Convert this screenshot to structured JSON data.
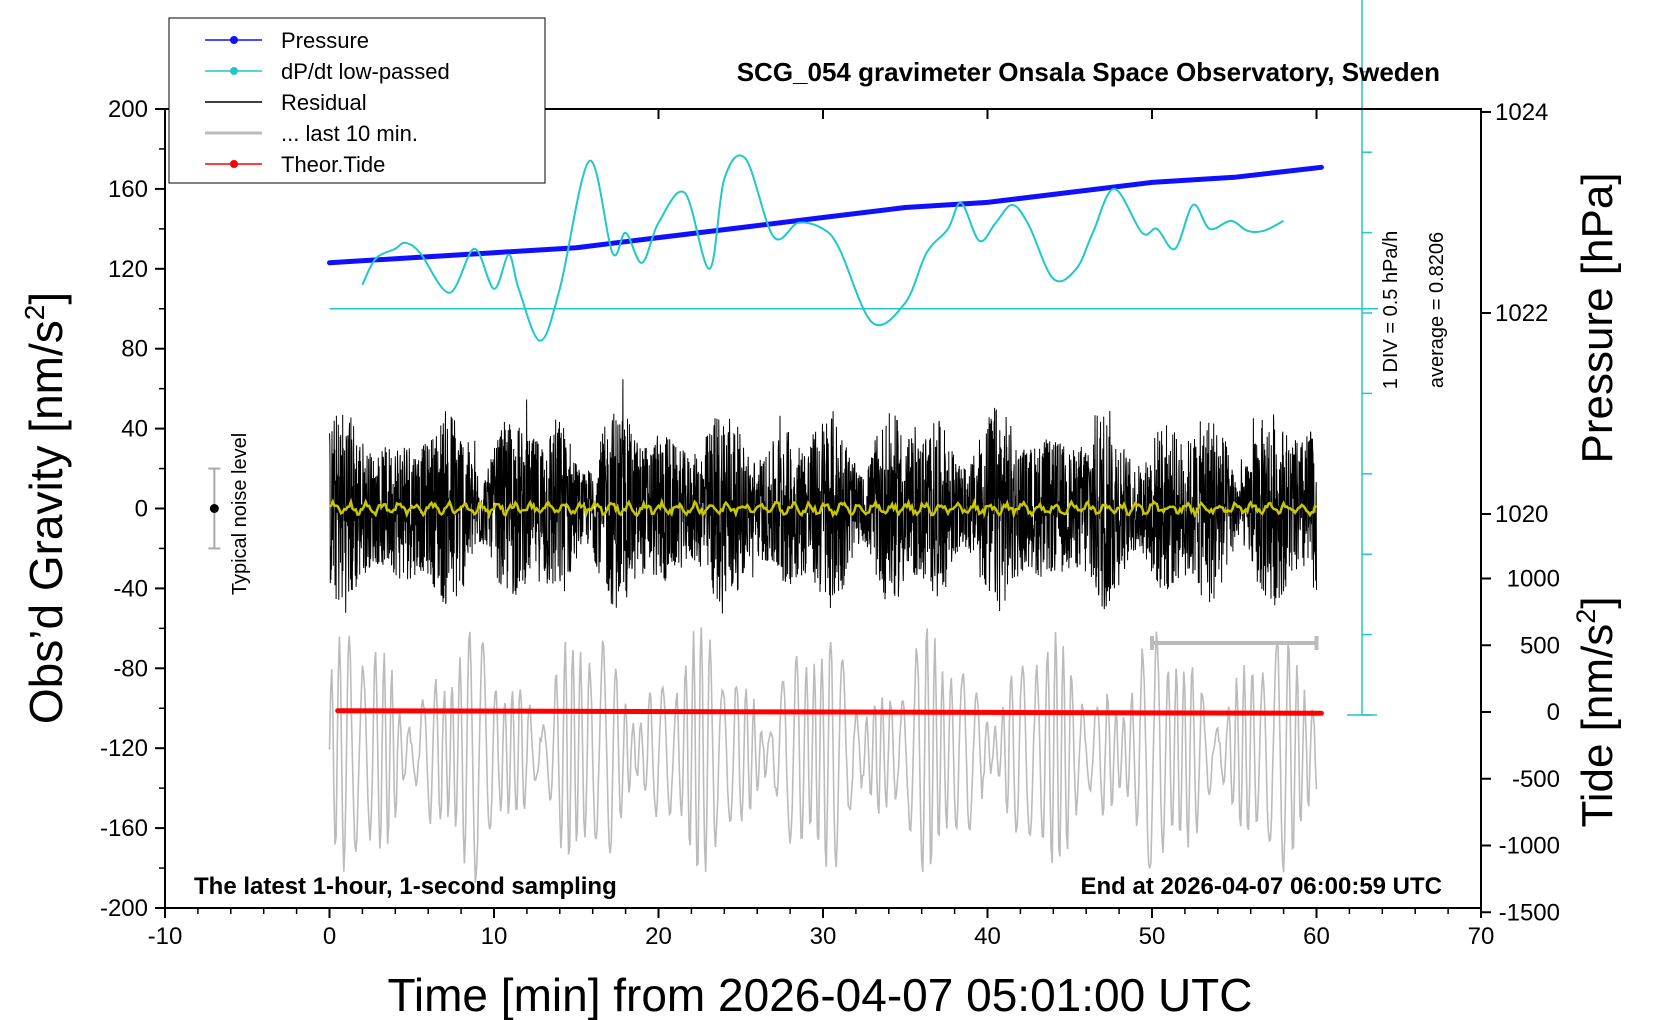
{
  "chart_data": {
    "type": "line",
    "title": "SCG_054 gravimeter Onsala Space Observatory, Sweden",
    "xlabel": "Time [min] from 2026-04-07 05:01:00 UTC",
    "ylabel_left_pre": "Obs’d Gravity [nm/s",
    "ylabel_left_sup": "2",
    "ylabel_left_post": "]",
    "ylabel_right_pressure": "Pressure [hPa]",
    "ylabel_right_tide_pre": "Tide [nm/s",
    "ylabel_right_tide_sup": "2",
    "ylabel_right_tide_post": "]",
    "xlim": [
      -10,
      70
    ],
    "ylim": [
      -200,
      200
    ],
    "x_ticks": [
      "-10",
      "0",
      "10",
      "20",
      "30",
      "40",
      "50",
      "60",
      "70"
    ],
    "y_ticks": [
      "200",
      "160",
      "120",
      "80",
      "40",
      "0",
      "-40",
      "-80",
      "-120",
      "-160",
      "-200"
    ],
    "pressure_axis": {
      "range": [
        1018,
        1026
      ],
      "ticks": [
        "1024",
        "1022",
        "1020"
      ]
    },
    "tide_axis": {
      "range": [
        -1500,
        1500
      ],
      "ticks": [
        "1000",
        "500",
        "0",
        "-500",
        "-1000",
        "-1500"
      ]
    },
    "legend": {
      "position": "top-left",
      "items": [
        {
          "label": "Pressure",
          "color": "#1010ff",
          "marker": true
        },
        {
          "label": "dP/dt low-passed",
          "color": "#20c8c8",
          "marker": true
        },
        {
          "label": "Residual",
          "color": "#000000",
          "marker": false
        },
        {
          "label": "... last 10 min.",
          "color": "#bbbbbb",
          "marker": false
        },
        {
          "label": "Theor.Tide",
          "color": "#ff0000",
          "marker": true
        }
      ]
    },
    "annotations": {
      "bottom_left": "The latest 1-hour, 1-second sampling",
      "bottom_right": "End at 2026-04-07 06:00:59 UTC",
      "noise": "Typical noise level",
      "dpdt_scale": "1 DIV = 0.5 hPa/h",
      "dpdt_average": "average = 0.8206"
    },
    "series": [
      {
        "name": "Pressure",
        "color": "#1010ff",
        "axis": "pressure",
        "x": [
          0,
          5,
          10,
          15,
          20,
          25,
          30,
          35,
          40,
          45,
          50,
          55,
          60.3
        ],
        "y": [
          1022.5,
          1022.55,
          1022.6,
          1022.65,
          1022.75,
          1022.85,
          1022.95,
          1023.05,
          1023.1,
          1023.2,
          1023.3,
          1023.35,
          1023.45
        ]
      },
      {
        "name": "dP/dt low-passed",
        "color": "#20c8c8",
        "axis": "gravity",
        "x": [
          2,
          2.8,
          4,
          4.6,
          5.5,
          7.3,
          8.8,
          10,
          10.9,
          11.5,
          12.8,
          14,
          15.8,
          17.2,
          18,
          19,
          20,
          21.6,
          23.1,
          24,
          25.3,
          27,
          28.5,
          30,
          31,
          33,
          35,
          36.3,
          37.6,
          38.4,
          39.5,
          40.5,
          41.5,
          42.5,
          44,
          45.4,
          46.4,
          47.7,
          49.4,
          50.3,
          51.4,
          52.5,
          53.5,
          54.8,
          55.8,
          56.8,
          58
        ],
        "y": [
          112,
          125,
          130,
          133,
          128,
          108,
          130,
          110,
          127,
          110,
          84,
          110,
          174,
          128,
          138,
          123,
          143,
          158,
          120,
          165,
          175,
          136,
          143,
          140,
          130,
          93,
          103,
          128,
          140,
          153,
          134,
          143,
          152,
          142,
          115,
          120,
          138,
          160,
          138,
          140,
          130,
          152,
          140,
          144,
          139,
          139,
          144
        ]
      },
      {
        "name": "Theor.Tide",
        "color": "#ff0000",
        "axis": "tide",
        "x": [
          0.5,
          60.3
        ],
        "y": [
          10,
          -10
        ]
      }
    ],
    "residual": {
      "x_range": [
        0,
        60
      ],
      "typical_amplitude": 40,
      "min": -85,
      "max": 73
    },
    "noise_bar": {
      "x": -7,
      "center": 0,
      "half_width": 20
    },
    "reference_lines": {
      "dpdt_zero": 100,
      "tide_zero": 0
    },
    "gray_bar_x": [
      50,
      60
    ]
  }
}
